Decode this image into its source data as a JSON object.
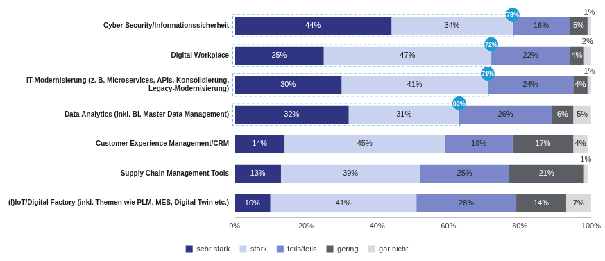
{
  "chart_data": {
    "type": "bar",
    "orientation": "horizontal",
    "stacked": true,
    "data_labels": true,
    "grid": false,
    "legend": "bottom",
    "categories": [
      "Cyber Security/Informationssicherheit",
      "Digital Workplace",
      "IT-Modernisierung (z. B. Microservices, APIs, Konsolidierung, Legacy-Modernisierung)",
      "Data Analytics (inkl. BI, Master Data Management)",
      "Customer Experience Management/CRM",
      "Supply Chain Management Tools",
      "(I)IoT/Digital Factory (inkl. Themen wie PLM, MES, Digital Twin etc.)"
    ],
    "series": [
      {
        "name": "sehr stark",
        "color": "#2f3580",
        "values": [
          44,
          25,
          30,
          32,
          14,
          13,
          10
        ],
        "value_labels": [
          "44%",
          "25%",
          "30%",
          "32%",
          "14%",
          "13%",
          "10%"
        ]
      },
      {
        "name": "stark",
        "color": "#c9d3f0",
        "values": [
          34,
          47,
          41,
          31,
          45,
          39,
          41
        ],
        "value_labels": [
          "34%",
          "47%",
          "41%",
          "31%",
          "45%",
          "39%",
          "41%"
        ]
      },
      {
        "name": "teils/teils",
        "color": "#7c87c9",
        "values": [
          16,
          22,
          24,
          26,
          19,
          25,
          28
        ],
        "value_labels": [
          "16%",
          "22%",
          "24%",
          "26%",
          "19%",
          "25%",
          "28%"
        ]
      },
      {
        "name": "gering",
        "color": "#5b5e63",
        "values": [
          5,
          4,
          4,
          6,
          17,
          21,
          14
        ],
        "value_labels": [
          "5%",
          "4%",
          "4%",
          "6%",
          "17%",
          "21%",
          "14%"
        ]
      },
      {
        "name": "gar nicht",
        "color": "#d9d9d9",
        "values": [
          1,
          2,
          1,
          5,
          4,
          1,
          7
        ],
        "value_labels": [
          "1%",
          "2%",
          "1%",
          "5%",
          "4%",
          "1%",
          "7%"
        ]
      }
    ],
    "xlim": [
      0,
      100
    ],
    "xticks": [
      {
        "value": 0,
        "label": "0%"
      },
      {
        "value": 20,
        "label": "20%"
      },
      {
        "value": 40,
        "label": "40%"
      },
      {
        "value": 60,
        "label": "60%"
      },
      {
        "value": 80,
        "label": "80%"
      },
      {
        "value": 100,
        "label": "100%"
      }
    ],
    "annotations": [
      {
        "category": "Cyber Security/Informationssicherheit",
        "value": 78,
        "label": "78%"
      },
      {
        "category": "Digital Workplace",
        "value": 72,
        "label": "72%"
      },
      {
        "category": "IT-Modernisierung (z. B. Microservices, APIs, Konsolidierung, Legacy-Modernisierung)",
        "value": 71,
        "label": "71%"
      },
      {
        "category": "Data Analytics (inkl. BI, Master Data Management)",
        "value": 63,
        "label": "63%"
      }
    ]
  }
}
